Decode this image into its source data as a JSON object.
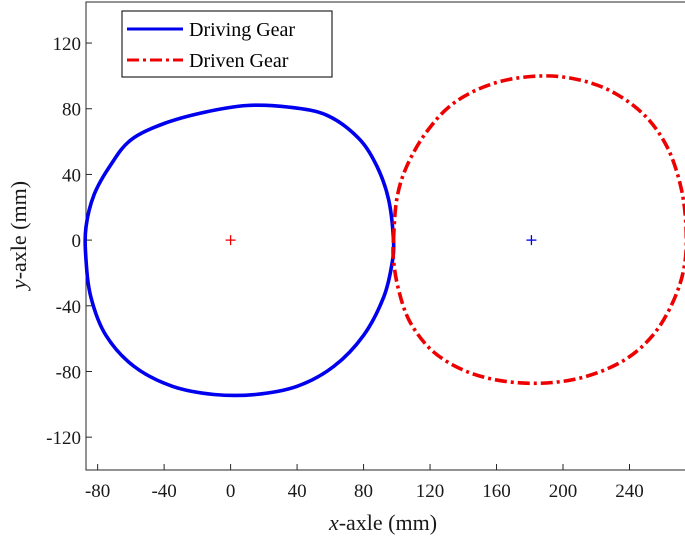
{
  "chart_data": {
    "type": "line",
    "xlabel_var": "x",
    "xlabel_rest": "-axle (mm)",
    "ylabel_var": "y",
    "ylabel_rest": "-axle (mm)",
    "xlim": [
      -87,
      274
    ],
    "ylim": [
      -140,
      145
    ],
    "xticks": [
      -80,
      -40,
      0,
      40,
      80,
      120,
      160,
      200,
      240
    ],
    "yticks": [
      -120,
      -80,
      -40,
      0,
      40,
      80,
      120
    ],
    "xtick_labels": [
      "-80",
      "-40",
      "0",
      "40",
      "80",
      "120",
      "160",
      "200",
      "240"
    ],
    "ytick_labels": [
      "-120",
      "-80",
      "-40",
      "0",
      "40",
      "80",
      "120"
    ],
    "legend_position": "top-left",
    "series": [
      {
        "name": "Driving Gear",
        "style": "solid",
        "color": "#0000ee",
        "center_marker": {
          "x": 0,
          "y": 0,
          "color": "#ee0000"
        },
        "points": [
          [
            98,
            0
          ],
          [
            95,
            25
          ],
          [
            88,
            45
          ],
          [
            77,
            62
          ],
          [
            58,
            76
          ],
          [
            35,
            81
          ],
          [
            10,
            82
          ],
          [
            -15,
            78
          ],
          [
            -40,
            71
          ],
          [
            -60,
            61
          ],
          [
            -72,
            46
          ],
          [
            -82,
            28
          ],
          [
            -87,
            8
          ],
          [
            -87,
            -12
          ],
          [
            -84,
            -35
          ],
          [
            -75,
            -58
          ],
          [
            -58,
            -77
          ],
          [
            -35,
            -89
          ],
          [
            -10,
            -94
          ],
          [
            15,
            -94
          ],
          [
            40,
            -89
          ],
          [
            62,
            -77
          ],
          [
            80,
            -58
          ],
          [
            92,
            -35
          ],
          [
            97,
            -15
          ],
          [
            98,
            0
          ]
        ]
      },
      {
        "name": "Driven Gear",
        "style": "dashdot",
        "color": "#ee0000",
        "center_marker": {
          "x": 181,
          "y": 0,
          "color": "#0000ee"
        },
        "points": [
          [
            98,
            0
          ],
          [
            100,
            25
          ],
          [
            106,
            45
          ],
          [
            118,
            66
          ],
          [
            135,
            84
          ],
          [
            160,
            96
          ],
          [
            188,
            100
          ],
          [
            212,
            97
          ],
          [
            232,
            89
          ],
          [
            250,
            75
          ],
          [
            263,
            56
          ],
          [
            271,
            32
          ],
          [
            274,
            8
          ],
          [
            273,
            -16
          ],
          [
            266,
            -38
          ],
          [
            254,
            -58
          ],
          [
            237,
            -73
          ],
          [
            214,
            -83
          ],
          [
            190,
            -87
          ],
          [
            165,
            -86
          ],
          [
            142,
            -80
          ],
          [
            122,
            -68
          ],
          [
            108,
            -50
          ],
          [
            101,
            -30
          ],
          [
            98,
            -12
          ],
          [
            98,
            0
          ]
        ]
      }
    ]
  }
}
